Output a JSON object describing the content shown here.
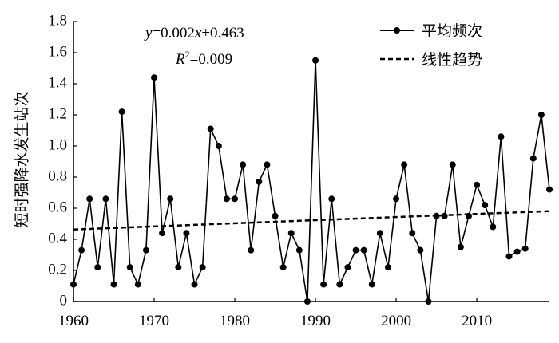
{
  "chart_data": {
    "type": "line",
    "title": "",
    "xlabel": "",
    "ylabel": "短时强降水发生站次",
    "xlim": [
      1960,
      2019
    ],
    "ylim": [
      0,
      1.8
    ],
    "x_ticks": [
      "1960",
      "1970",
      "1980",
      "1990",
      "2000",
      "2010"
    ],
    "y_ticks": [
      "0",
      "0.2",
      "0.4",
      "0.6",
      "0.8",
      "1.0",
      "1.2",
      "1.4",
      "1.6",
      "1.8"
    ],
    "series": [
      {
        "name": "平均频次",
        "style": "solid-with-markers",
        "color": "#000000",
        "x": [
          1960,
          1961,
          1962,
          1963,
          1964,
          1965,
          1966,
          1967,
          1968,
          1969,
          1970,
          1971,
          1972,
          1973,
          1974,
          1975,
          1976,
          1977,
          1978,
          1979,
          1980,
          1981,
          1982,
          1983,
          1984,
          1985,
          1986,
          1987,
          1988,
          1989,
          1990,
          1991,
          1992,
          1993,
          1994,
          1995,
          1996,
          1997,
          1998,
          1999,
          2000,
          2001,
          2002,
          2003,
          2004,
          2005,
          2006,
          2007,
          2008,
          2009,
          2010,
          2011,
          2012,
          2013,
          2014,
          2015,
          2016,
          2017,
          2018,
          2019
        ],
        "values": [
          0.11,
          0.33,
          0.66,
          0.22,
          0.66,
          0.11,
          1.22,
          0.22,
          0.11,
          0.33,
          1.44,
          0.44,
          0.66,
          0.22,
          0.44,
          0.11,
          0.22,
          1.11,
          1.0,
          0.66,
          0.66,
          0.88,
          0.33,
          0.77,
          0.88,
          0.55,
          0.22,
          0.44,
          0.33,
          0.0,
          1.55,
          0.11,
          0.66,
          0.11,
          0.22,
          0.33,
          0.33,
          0.11,
          0.44,
          0.22,
          0.66,
          0.88,
          0.44,
          0.33,
          0.0,
          0.55,
          0.55,
          0.88,
          0.35,
          0.55,
          0.75,
          0.62,
          0.48,
          1.06,
          0.29,
          0.32,
          0.34,
          0.92,
          1.2,
          0.72
        ]
      },
      {
        "name": "线性趋势",
        "style": "dashed",
        "color": "#000000",
        "x": [
          1960,
          2019
        ],
        "values": [
          0.463,
          0.581
        ]
      }
    ],
    "annotations": {
      "equation_y": "y",
      "equation_rest": "=0.002",
      "equation_x": "x",
      "equation_tail": "+0.463",
      "r2_prefix": "R",
      "r2_sup": "2",
      "r2_value": "=0.009"
    },
    "legend": {
      "position": "top-right"
    },
    "grid": false
  }
}
